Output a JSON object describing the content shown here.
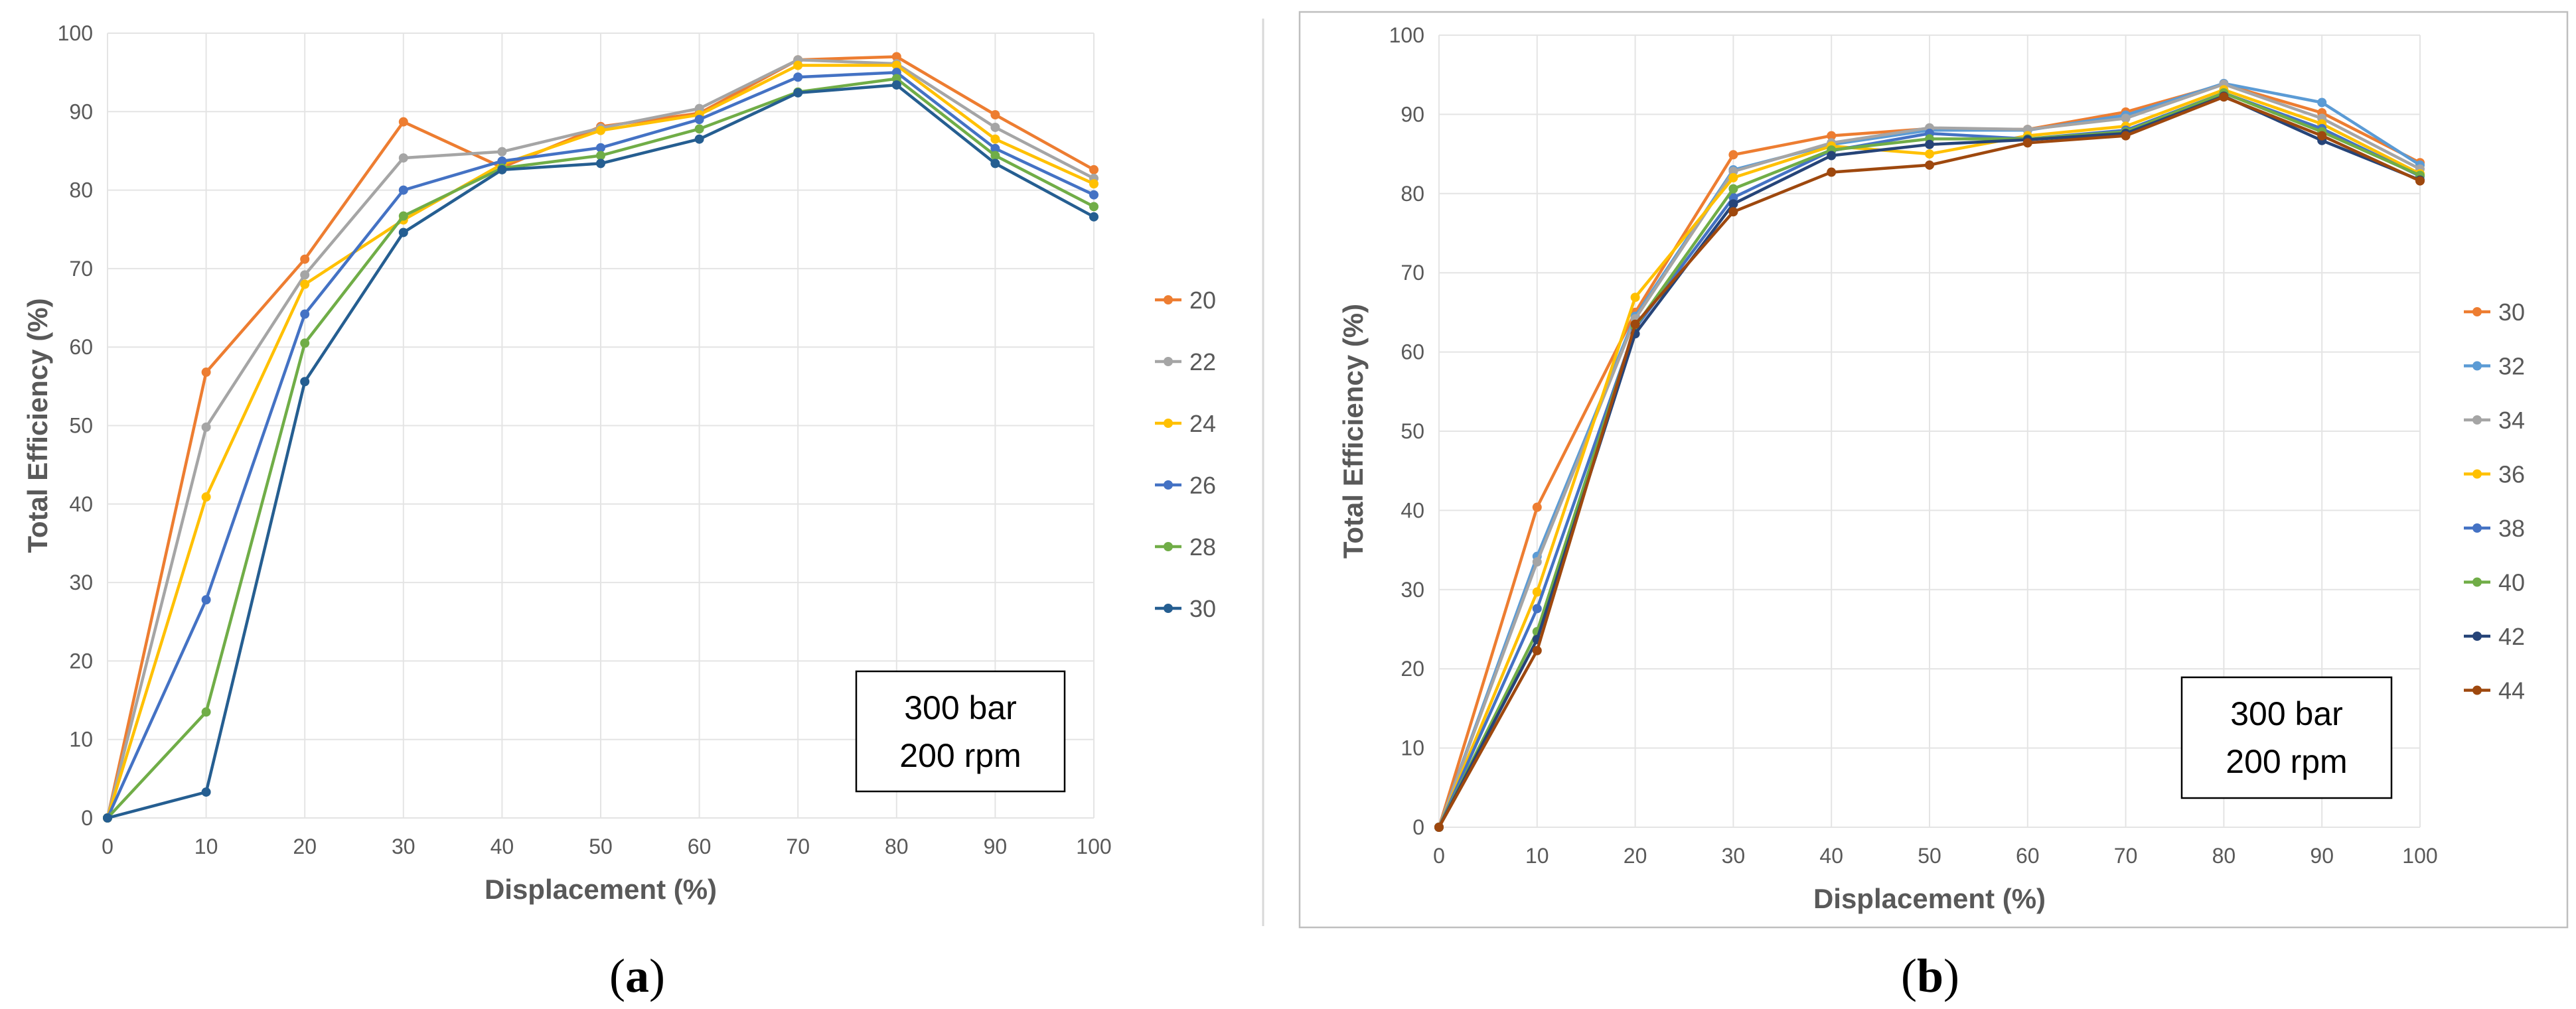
{
  "chart_data": [
    {
      "id": "a",
      "type": "line",
      "panel_label": {
        "open": "(",
        "letter": "a",
        "close": ")"
      },
      "xlabel": "Displacement (%)",
      "ylabel": "Total Efficiency (%)",
      "xlim": [
        0,
        100
      ],
      "ylim": [
        0,
        100
      ],
      "xticks": [
        0,
        10,
        20,
        30,
        40,
        50,
        60,
        70,
        80,
        90,
        100
      ],
      "yticks": [
        0,
        10,
        20,
        30,
        40,
        50,
        60,
        70,
        80,
        90,
        100
      ],
      "grid": true,
      "annotation": [
        "300 bar",
        "200 rpm"
      ],
      "legend_position": "right",
      "x": [
        0,
        10,
        20,
        30,
        40,
        50,
        60,
        70,
        80,
        90,
        100
      ],
      "series": [
        {
          "name": "20",
          "color": "#ED7D31",
          "values": [
            0,
            56.8,
            71.2,
            88.7,
            82.9,
            88.1,
            89.8,
            96.6,
            97.0,
            89.6,
            82.6
          ]
        },
        {
          "name": "22",
          "color": "#A5A5A5",
          "values": [
            0,
            49.8,
            69.2,
            84.1,
            84.9,
            87.9,
            90.4,
            96.6,
            96.1,
            88.0,
            81.5
          ]
        },
        {
          "name": "24",
          "color": "#FFC000",
          "values": [
            0,
            40.9,
            68.0,
            76.2,
            83.3,
            87.6,
            89.6,
            95.9,
            95.9,
            86.5,
            80.8
          ]
        },
        {
          "name": "26",
          "color": "#4472C4",
          "values": [
            0,
            27.8,
            64.2,
            80.0,
            83.7,
            85.4,
            89.0,
            94.4,
            95.0,
            85.3,
            79.4
          ]
        },
        {
          "name": "28",
          "color": "#70AD47",
          "values": [
            0,
            13.5,
            60.5,
            76.7,
            82.8,
            84.4,
            87.8,
            92.5,
            94.2,
            84.4,
            77.9
          ]
        },
        {
          "name": "30",
          "color": "#255E91",
          "values": [
            0,
            3.3,
            55.6,
            74.6,
            82.6,
            83.4,
            86.5,
            92.4,
            93.4,
            83.4,
            76.6
          ]
        }
      ]
    },
    {
      "id": "b",
      "type": "line",
      "panel_label": {
        "open": "(",
        "letter": "b",
        "close": ")"
      },
      "xlabel": "Displacement (%)",
      "ylabel": "Total Efficiency (%)",
      "xlim": [
        0,
        100
      ],
      "ylim": [
        0,
        100
      ],
      "xticks": [
        0,
        10,
        20,
        30,
        40,
        50,
        60,
        70,
        80,
        90,
        100
      ],
      "yticks": [
        0,
        10,
        20,
        30,
        40,
        50,
        60,
        70,
        80,
        90,
        100
      ],
      "grid": true,
      "annotation": [
        "300 bar",
        "200 rpm"
      ],
      "legend_position": "right",
      "x": [
        0,
        10,
        20,
        30,
        40,
        50,
        60,
        70,
        80,
        90,
        100
      ],
      "series": [
        {
          "name": "30",
          "color": "#ED7D31",
          "values": [
            0,
            40.4,
            65.0,
            84.9,
            87.3,
            88.2,
            88.1,
            90.3,
            93.8,
            90.2,
            83.9
          ]
        },
        {
          "name": "32",
          "color": "#5B9BD5",
          "values": [
            0,
            34.2,
            64.5,
            83.0,
            86.2,
            88.0,
            88.0,
            89.9,
            93.9,
            91.5,
            83.6
          ]
        },
        {
          "name": "34",
          "color": "#A5A5A5",
          "values": [
            0,
            33.5,
            64.2,
            82.8,
            86.4,
            88.3,
            88.1,
            89.5,
            93.8,
            89.5,
            83.1
          ]
        },
        {
          "name": "36",
          "color": "#FFC000",
          "values": [
            0,
            29.7,
            66.9,
            82.0,
            86.0,
            85.0,
            87.3,
            88.5,
            93.1,
            88.8,
            82.5
          ]
        },
        {
          "name": "38",
          "color": "#4472C4",
          "values": [
            0,
            27.6,
            63.0,
            79.5,
            85.4,
            87.6,
            86.9,
            88.0,
            92.7,
            88.2,
            82.2
          ]
        },
        {
          "name": "40",
          "color": "#70AD47",
          "values": [
            0,
            24.7,
            63.2,
            80.6,
            85.5,
            86.9,
            86.9,
            87.8,
            92.7,
            87.8,
            82.3
          ]
        },
        {
          "name": "42",
          "color": "#264478",
          "values": [
            0,
            23.7,
            62.3,
            78.7,
            84.8,
            86.2,
            86.8,
            87.6,
            92.3,
            86.7,
            81.7
          ]
        },
        {
          "name": "44",
          "color": "#9E480E",
          "values": [
            0,
            22.3,
            63.5,
            77.7,
            82.7,
            83.6,
            86.4,
            87.3,
            92.2,
            87.3,
            81.6
          ]
        }
      ]
    }
  ]
}
